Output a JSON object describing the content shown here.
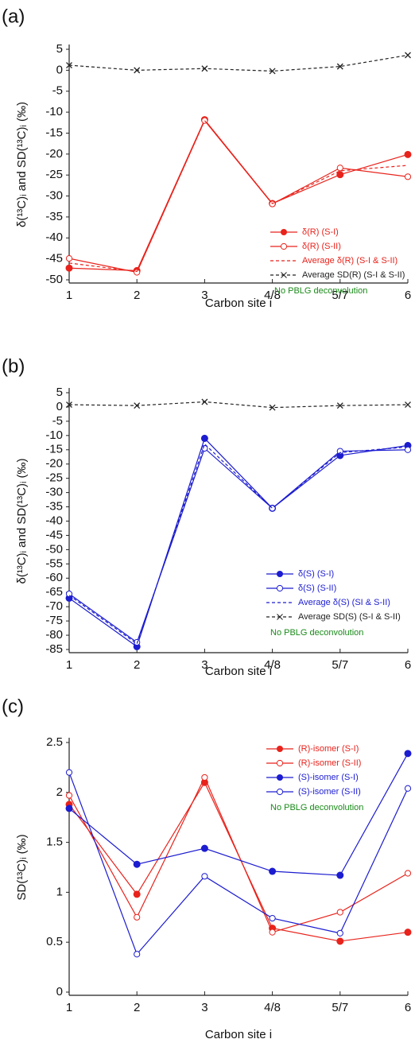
{
  "chart_data": [
    {
      "type": "line",
      "label": "(a)",
      "xlabel": "Carbon site i",
      "ylabel": "δ(¹³C)ᵢ and SD(¹³C)ᵢ (‰)",
      "note": "No PBLG deconvolution",
      "note_color": "#1a8a1a",
      "categories": [
        "1",
        "2",
        "3",
        "4/8",
        "5/7",
        "6"
      ],
      "ylim": [
        -50,
        5
      ],
      "yticks": [
        5,
        0,
        -5,
        -10,
        -15,
        -20,
        -25,
        -30,
        -35,
        -40,
        -45,
        -50
      ],
      "series": [
        {
          "name": "δ(R) (S-I)",
          "color": "#e8231c",
          "marker": "filled",
          "dashed": false,
          "values": [
            -47.2,
            -47.8,
            -11.8,
            -31.8,
            -24.9,
            -20.1
          ]
        },
        {
          "name": "δ(R) (S-II)",
          "color": "#e8231c",
          "marker": "open",
          "dashed": false,
          "values": [
            -44.9,
            -48.2,
            -12.0,
            -31.9,
            -23.3,
            -25.4
          ]
        },
        {
          "name": "Average δ(R) (S-I & S-II)",
          "color": "#e8231c",
          "marker": "none",
          "dashed": true,
          "values": [
            -46.0,
            -48.0,
            -12.0,
            -31.8,
            -24.0,
            -22.7
          ]
        },
        {
          "name": "Average SD(R) (S-I & S-II)",
          "color": "#222222",
          "marker": "cross",
          "dashed": true,
          "values": [
            1.2,
            0.0,
            0.4,
            -0.2,
            0.9,
            3.6
          ]
        }
      ]
    },
    {
      "type": "line",
      "label": "(b)",
      "xlabel": "Carbon site i",
      "ylabel": "δ(¹³C)ᵢ and SD(¹³C)ᵢ (‰)",
      "note": "No PBLG deconvolution",
      "note_color": "#1a8a1a",
      "categories": [
        "1",
        "2",
        "3",
        "4/8",
        "5/7",
        "6"
      ],
      "ylim": [
        -85,
        5
      ],
      "yticks": [
        5,
        0,
        -5,
        -10,
        -15,
        -20,
        -25,
        -30,
        -35,
        -40,
        -45,
        -50,
        -55,
        -60,
        -65,
        -70,
        -75,
        -80,
        -85
      ],
      "series": [
        {
          "name": "δ(S) (S-I)",
          "color": "#1c1cd0",
          "marker": "filled",
          "dashed": false,
          "values": [
            -67,
            -84,
            -11,
            -35.5,
            -17,
            -13.5
          ]
        },
        {
          "name": "δ(S) (S-II)",
          "color": "#1c1cd0",
          "marker": "open",
          "dashed": false,
          "values": [
            -65.5,
            -82.5,
            -14.5,
            -35.5,
            -15.5,
            -15
          ]
        },
        {
          "name": "Average δ(S) (SI & S-II)",
          "color": "#1c1cd0",
          "marker": "none",
          "dashed": true,
          "values": [
            -66,
            -83,
            -13,
            -35.5,
            -16,
            -14
          ]
        },
        {
          "name": "Average SD(S) (S-I & S-II)",
          "color": "#222222",
          "marker": "cross",
          "dashed": true,
          "values": [
            0.8,
            0.5,
            1.8,
            -0.2,
            0.5,
            0.8
          ]
        }
      ]
    },
    {
      "type": "line",
      "label": "(c)",
      "xlabel": "Carbon site i",
      "ylabel": "SD(¹³C)ᵢ (‰)",
      "note": "No PBLG deconvolution",
      "note_color": "#1a8a1a",
      "categories": [
        "1",
        "2",
        "3",
        "4/8",
        "5/7",
        "6"
      ],
      "ylim": [
        0,
        2.5
      ],
      "yticks": [
        0,
        0.5,
        1,
        1.5,
        2,
        2.5
      ],
      "series": [
        {
          "name": "(R)-isomer (S-I)",
          "color": "#e8231c",
          "marker": "filled",
          "dashed": false,
          "values": [
            1.88,
            0.98,
            2.1,
            0.64,
            0.51,
            0.6
          ]
        },
        {
          "name": "(R)-isomer (S-II)",
          "color": "#e8231c",
          "marker": "open",
          "dashed": false,
          "values": [
            1.97,
            0.75,
            2.15,
            0.6,
            0.8,
            1.19
          ]
        },
        {
          "name": "(S)-isomer (S-I)",
          "color": "#1c1cd0",
          "marker": "filled",
          "dashed": false,
          "values": [
            1.84,
            1.28,
            1.44,
            1.21,
            1.17,
            2.39
          ]
        },
        {
          "name": "(S)-isomer (S-II)",
          "color": "#1c1cd0",
          "marker": "open",
          "dashed": false,
          "values": [
            2.2,
            0.38,
            1.16,
            0.74,
            0.59,
            2.04
          ]
        }
      ]
    }
  ]
}
